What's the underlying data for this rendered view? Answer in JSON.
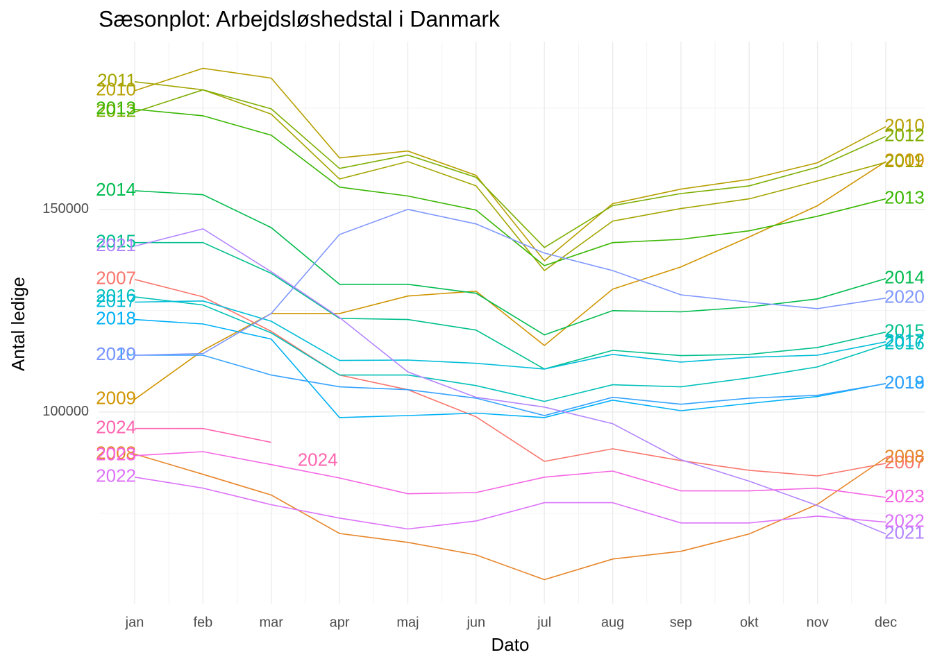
{
  "chart_data": {
    "type": "line",
    "title": "Sæsonplot: Arbejdsløshedstal i Danmark",
    "x_label": "Dato",
    "y_label": "Antal ledige",
    "categories": [
      "jan",
      "feb",
      "mar",
      "apr",
      "maj",
      "jun",
      "jul",
      "aug",
      "sep",
      "okt",
      "nov",
      "dec"
    ],
    "ylim": [
      52700,
      191400
    ],
    "yticks": [
      100000,
      150000
    ],
    "grid": true,
    "series": [
      {
        "name": "2007",
        "color": "#F8766D",
        "values": [
          132700,
          128400,
          119900,
          109100,
          105500,
          98800,
          87800,
          90900,
          88000,
          85600,
          84200,
          87300
        ]
      },
      {
        "name": "2008",
        "color": "#E7852A",
        "values": [
          89600,
          84600,
          79500,
          70000,
          67800,
          64700,
          58600,
          63700,
          65600,
          69900,
          77200,
          88700
        ]
      },
      {
        "name": "2009",
        "color": "#D09400",
        "values": [
          103100,
          115200,
          124300,
          124300,
          128600,
          129800,
          116400,
          130300,
          135800,
          143200,
          150900,
          161800
        ]
      },
      {
        "name": "2010",
        "color": "#B79F00",
        "values": [
          179300,
          184800,
          182400,
          162700,
          164400,
          158400,
          137300,
          151400,
          155000,
          157400,
          161500,
          170400
        ]
      },
      {
        "name": "2011",
        "color": "#A3A500",
        "values": [
          181500,
          179500,
          173500,
          157500,
          161800,
          155800,
          134900,
          147100,
          150200,
          152600,
          157000,
          161600
        ]
      },
      {
        "name": "2012",
        "color": "#7CAE00",
        "values": [
          174000,
          179500,
          174800,
          160100,
          163400,
          157900,
          140600,
          150900,
          153900,
          155800,
          160400,
          168000
        ]
      },
      {
        "name": "2013",
        "color": "#39B600",
        "values": [
          174700,
          173100,
          168300,
          155500,
          153300,
          149800,
          136100,
          141800,
          142600,
          144700,
          148300,
          152600
        ]
      },
      {
        "name": "2014",
        "color": "#00BB4E",
        "values": [
          154600,
          153600,
          145500,
          131500,
          131500,
          129300,
          119000,
          125000,
          124700,
          125900,
          127900,
          132900
        ]
      },
      {
        "name": "2015",
        "color": "#00BF8C",
        "values": [
          141800,
          141800,
          134200,
          123100,
          122800,
          120200,
          110600,
          115200,
          113900,
          114200,
          115900,
          119700
        ]
      },
      {
        "name": "2016",
        "color": "#00C0B8",
        "values": [
          128400,
          126400,
          119500,
          109100,
          109100,
          106500,
          102600,
          106700,
          106200,
          108400,
          111100,
          116600
        ]
      },
      {
        "name": "2017",
        "color": "#00BCD8",
        "values": [
          127100,
          127400,
          122400,
          112700,
          112800,
          112000,
          110600,
          114200,
          112300,
          113500,
          114000,
          117300
        ]
      },
      {
        "name": "2018",
        "color": "#00B0F6",
        "values": [
          122800,
          121700,
          118000,
          98600,
          99100,
          99700,
          98600,
          102900,
          100300,
          102100,
          103800,
          107000
        ]
      },
      {
        "name": "2019",
        "color": "#35A2FF",
        "values": [
          114000,
          114000,
          109100,
          106200,
          105500,
          103400,
          99100,
          103600,
          101900,
          103400,
          104100,
          107000
        ]
      },
      {
        "name": "2020",
        "color": "#7F96FF",
        "values": [
          114000,
          114400,
          124300,
          143800,
          150000,
          146400,
          139200,
          134900,
          128900,
          127100,
          125500,
          128100
        ]
      },
      {
        "name": "2021",
        "color": "#B385FF",
        "values": [
          140900,
          145200,
          134600,
          123300,
          109900,
          103600,
          101200,
          97100,
          88200,
          82900,
          76900,
          69900
        ]
      },
      {
        "name": "2022",
        "color": "#DC71FA",
        "values": [
          83900,
          81200,
          77100,
          73800,
          71100,
          73100,
          77600,
          77600,
          72600,
          72600,
          74300,
          72800
        ]
      },
      {
        "name": "2023",
        "color": "#F564E3",
        "values": [
          89200,
          90200,
          87000,
          83700,
          79800,
          80100,
          83900,
          85400,
          80500,
          80500,
          81200,
          78900
        ]
      },
      {
        "name": "2024",
        "color": "#FF64B0",
        "values": [
          95900,
          95900,
          92500,
          null,
          null,
          null,
          null,
          null,
          null,
          null,
          null,
          null
        ]
      }
    ]
  }
}
